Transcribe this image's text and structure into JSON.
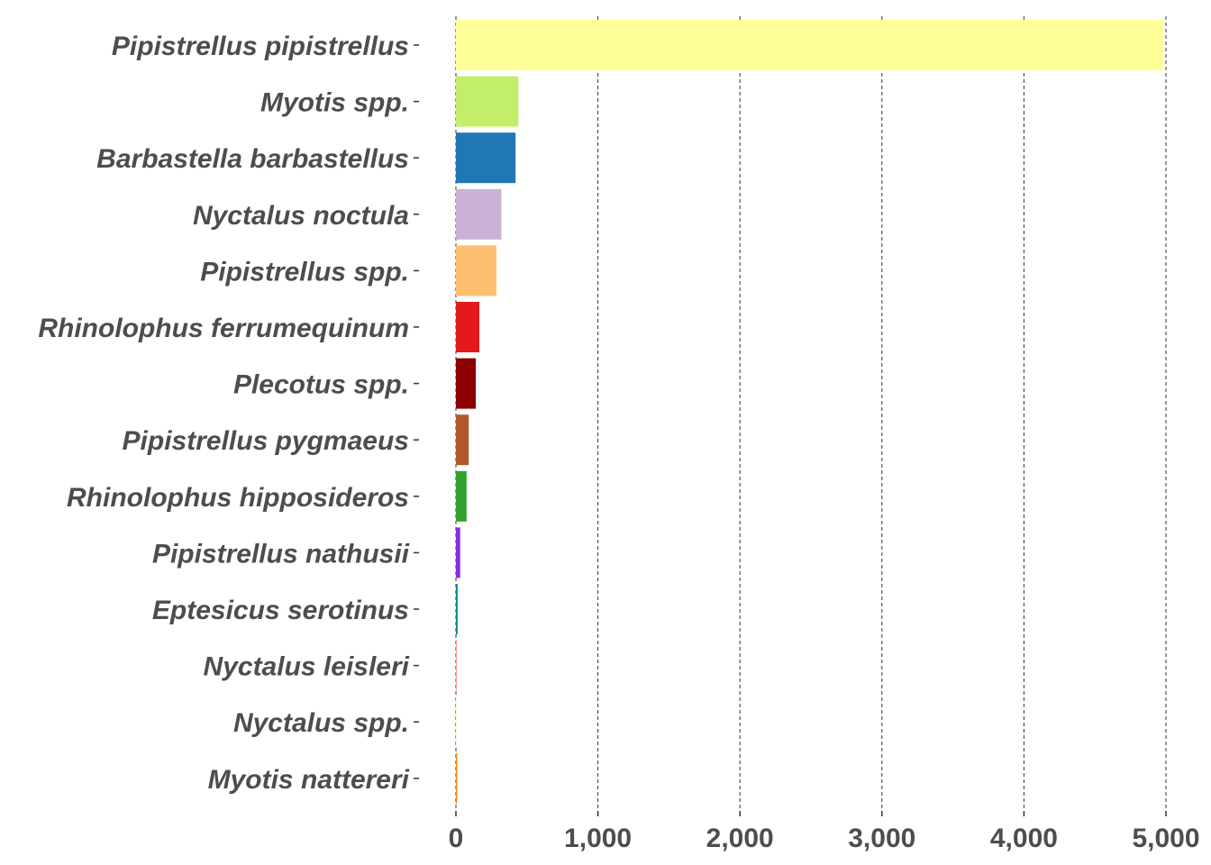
{
  "chart_data": {
    "type": "bar",
    "orientation": "horizontal",
    "title": "",
    "xlabel": "",
    "ylabel": "",
    "xlim": [
      0,
      5000
    ],
    "x_ticks": [
      {
        "value": 0,
        "label": "0"
      },
      {
        "value": 1000,
        "label": "1,000"
      },
      {
        "value": 2000,
        "label": "2,000"
      },
      {
        "value": 3000,
        "label": "3,000"
      },
      {
        "value": 4000,
        "label": "4,000"
      },
      {
        "value": 5000,
        "label": "5,000"
      }
    ],
    "grid": "vertical dashed",
    "legend": "none",
    "categories": [
      "Pipistrellus pipistrellus",
      "Myotis spp.",
      "Barbastella barbastellus",
      "Nyctalus noctula",
      "Pipistrellus spp.",
      "Rhinolophus ferrumequinum",
      "Plecotus spp.",
      "Pipistrellus pygmaeus",
      "Rhinolophus hipposideros",
      "Pipistrellus nathusii",
      "Eptesicus serotinus",
      "Nyctalus leisleri",
      "Nyctalus spp.",
      "Myotis nattereri"
    ],
    "values": [
      4980,
      440,
      420,
      320,
      285,
      165,
      140,
      90,
      75,
      30,
      12,
      6,
      3,
      8
    ],
    "colors": [
      "#FFFF99",
      "#C2EE6A",
      "#1F78B4",
      "#CAB2D6",
      "#FDBF6F",
      "#E31A1C",
      "#8B0000",
      "#B15928",
      "#33A02C",
      "#8A2BE2",
      "#008B8B",
      "#FB9A99",
      "#F5F5DC",
      "#FF7F00"
    ]
  }
}
